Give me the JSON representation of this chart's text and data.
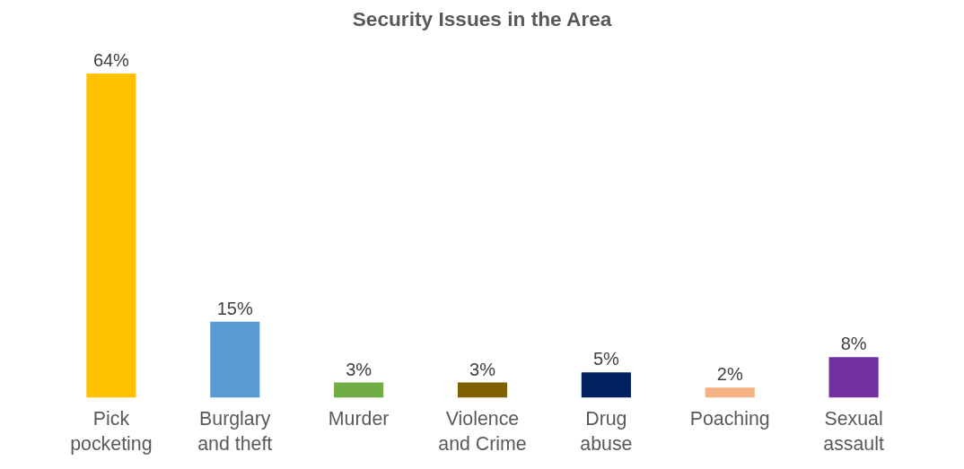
{
  "chart_data": {
    "type": "bar",
    "title": "Security Issues in the Area",
    "categories": [
      "Pick pocketing",
      "Burglary and theft",
      "Murder",
      "Violence and Crime",
      "Drug abuse",
      "Poaching",
      "Sexual assault"
    ],
    "values": [
      64,
      15,
      3,
      3,
      5,
      2,
      8
    ],
    "value_labels": [
      "64%",
      "15%",
      "3%",
      "3%",
      "5%",
      "2%",
      "8%"
    ],
    "colors": [
      "#ffc000",
      "#5b9bd5",
      "#70ad47",
      "#7f6000",
      "#002060",
      "#f4b183",
      "#7030a0"
    ],
    "grid": false
  }
}
